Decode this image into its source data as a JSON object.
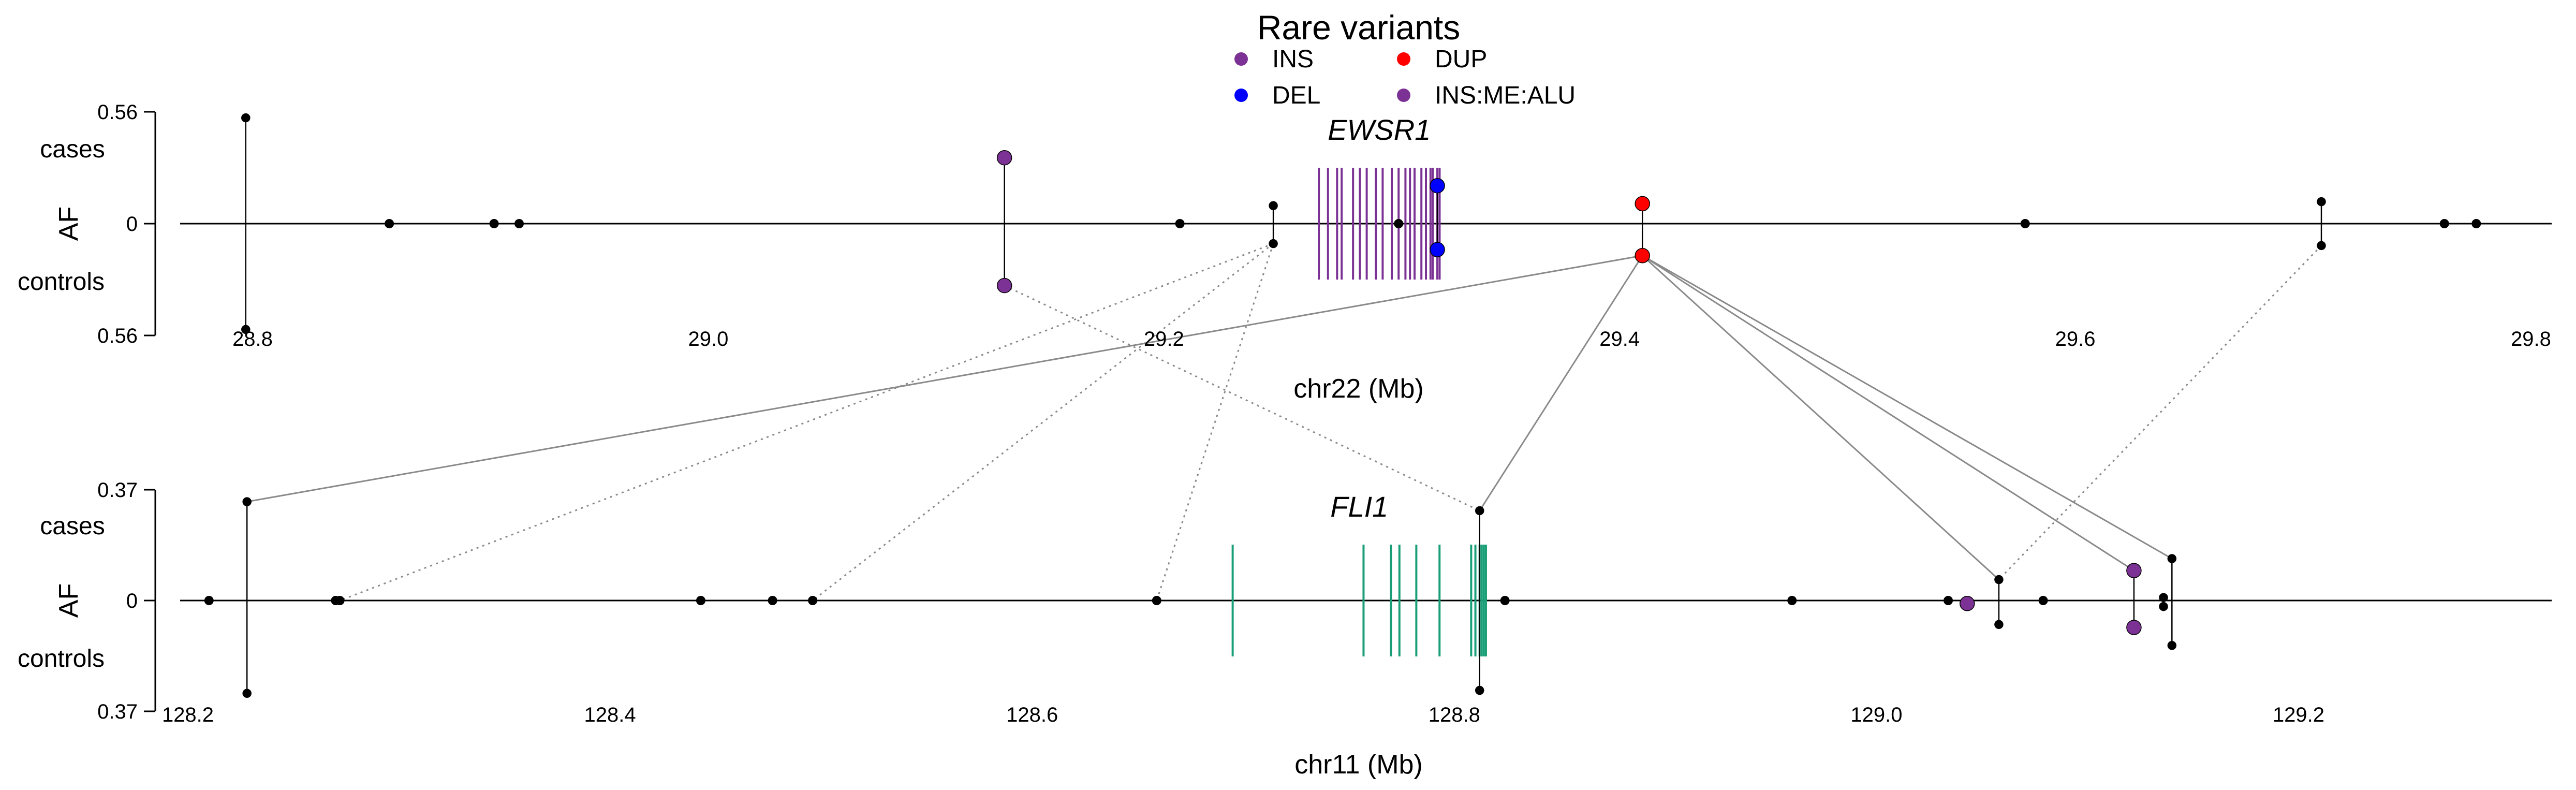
{
  "legend": {
    "title": "Rare variants",
    "items": [
      {
        "label": "INS",
        "color": "#7b3294"
      },
      {
        "label": "DUP",
        "color": "#ff0000"
      },
      {
        "label": "DEL",
        "color": "#0000ff"
      },
      {
        "label": "INS:ME:ALU",
        "color": "#7b3294"
      }
    ]
  },
  "chart_data": [
    {
      "type": "scatter",
      "panel": "top",
      "chromosome_label": "chr22 (Mb)",
      "xlabel": "chr22 (Mb)",
      "ylabel": "AF",
      "upper_label": "cases",
      "lower_label": "controls",
      "ylim_cases": 0.56,
      "ylim_controls": 0.56,
      "ytick_labels": [
        "0.56",
        "0",
        "0.56"
      ],
      "xlim": [
        28.78,
        29.84
      ],
      "xticks": [
        28.8,
        29.0,
        29.2,
        29.4,
        29.6,
        29.8
      ],
      "xtick_labels": [
        "28.8",
        "29.0",
        "29.2",
        "29.4",
        "29.6",
        "29.8"
      ],
      "gene": {
        "name": "EWSR1",
        "color": "#7b3294",
        "exons": [
          29.268,
          29.272,
          29.276,
          29.278,
          29.283,
          29.286,
          29.289,
          29.293,
          29.296,
          29.3,
          29.303,
          29.306,
          29.308,
          29.31,
          29.313,
          29.315,
          29.317,
          29.318,
          29.32,
          29.321
        ]
      },
      "variants": [
        {
          "x": 28.797,
          "case_af": 0.53,
          "control_af": 0.53,
          "color": "#000000"
        },
        {
          "x": 28.86,
          "case_af": 0.0,
          "control_af": 0.0,
          "color": "#000000"
        },
        {
          "x": 28.906,
          "case_af": 0.0,
          "control_af": 0.0,
          "color": "#000000"
        },
        {
          "x": 28.917,
          "case_af": 0.0,
          "control_af": 0.0,
          "color": "#000000"
        },
        {
          "x": 29.13,
          "case_af": 0.33,
          "control_af": 0.31,
          "color": "#7b3294"
        },
        {
          "x": 29.207,
          "case_af": 0.0,
          "control_af": 0.0,
          "color": "#000000"
        },
        {
          "x": 29.248,
          "case_af": 0.09,
          "control_af": 0.1,
          "color": "#000000"
        },
        {
          "x": 29.303,
          "case_af": 0.0,
          "control_af": 0.0,
          "color": "#000000"
        },
        {
          "x": 29.32,
          "case_af": 0.19,
          "control_af": 0.13,
          "color": "#0000ff"
        },
        {
          "x": 29.41,
          "case_af": 0.1,
          "control_af": 0.16,
          "color": "#ff0000"
        },
        {
          "x": 29.578,
          "case_af": 0.0,
          "control_af": 0.0,
          "color": "#000000"
        },
        {
          "x": 29.708,
          "case_af": 0.11,
          "control_af": 0.11,
          "color": "#000000"
        },
        {
          "x": 29.762,
          "case_af": 0.0,
          "control_af": 0.0,
          "color": "#000000"
        },
        {
          "x": 29.776,
          "case_af": 0.0,
          "control_af": 0.0,
          "color": "#000000"
        }
      ]
    },
    {
      "type": "scatter",
      "panel": "bottom",
      "chromosome_label": "chr11 (Mb)",
      "xlabel": "chr11 (Mb)",
      "ylabel": "AF",
      "upper_label": "cases",
      "lower_label": "controls",
      "ylim_cases": 0.37,
      "ylim_controls": 0.37,
      "ytick_labels": [
        "0.37",
        "0",
        "0.37"
      ],
      "xlim": [
        128.2,
        129.32
      ],
      "xticks": [
        128.2,
        128.4,
        128.6,
        128.8,
        129.0,
        129.2
      ],
      "xtick_labels": [
        "128.2",
        "128.4",
        "128.6",
        "128.8",
        "129.0",
        "129.2"
      ],
      "gene": {
        "name": "FLI1",
        "color": "#1a9e77",
        "exons": [
          128.695,
          128.757,
          128.77,
          128.774,
          128.782,
          128.793,
          128.808,
          128.81,
          128.812,
          128.813,
          128.814,
          128.815
        ]
      },
      "variants": [
        {
          "x": 128.228,
          "case_af": 0.33,
          "control_af": 0.31,
          "color": "#000000"
        },
        {
          "x": 128.21,
          "case_af": 0.0,
          "control_af": 0.0,
          "color": "#000000"
        },
        {
          "x": 128.27,
          "case_af": 0.0,
          "control_af": 0.0,
          "color": "#000000"
        },
        {
          "x": 128.272,
          "case_af": 0.0,
          "control_af": 0.0,
          "color": "#000000"
        },
        {
          "x": 128.443,
          "case_af": 0.0,
          "control_af": 0.0,
          "color": "#000000"
        },
        {
          "x": 128.477,
          "case_af": 0.0,
          "control_af": 0.0,
          "color": "#000000"
        },
        {
          "x": 128.496,
          "case_af": 0.0,
          "control_af": 0.0,
          "color": "#000000"
        },
        {
          "x": 128.659,
          "case_af": 0.0,
          "control_af": 0.0,
          "color": "#000000"
        },
        {
          "x": 128.812,
          "case_af": 0.3,
          "control_af": 0.3,
          "color": "#000000"
        },
        {
          "x": 128.824,
          "case_af": 0.0,
          "control_af": 0.0,
          "color": "#000000"
        },
        {
          "x": 128.96,
          "case_af": 0.0,
          "control_af": 0.0,
          "color": "#000000"
        },
        {
          "x": 129.034,
          "case_af": 0.0,
          "control_af": 0.0,
          "color": "#000000"
        },
        {
          "x": 129.043,
          "case_af": 0.0,
          "control_af": 0.01,
          "color": "#7b3294"
        },
        {
          "x": 129.058,
          "case_af": 0.07,
          "control_af": 0.08,
          "color": "#000000"
        },
        {
          "x": 129.079,
          "case_af": 0.0,
          "control_af": 0.0,
          "color": "#000000"
        },
        {
          "x": 129.122,
          "case_af": 0.1,
          "control_af": 0.09,
          "color": "#7b3294"
        },
        {
          "x": 129.136,
          "case_af": 0.01,
          "control_af": 0.02,
          "color": "#000000"
        },
        {
          "x": 129.14,
          "case_af": 0.14,
          "control_af": 0.15,
          "color": "#000000"
        }
      ]
    }
  ],
  "links": [
    {
      "style": "dotted",
      "from": {
        "panel": "top",
        "x": 29.13,
        "side": "controls"
      },
      "to": {
        "panel": "bottom",
        "x": 128.812,
        "side": "cases"
      }
    },
    {
      "style": "dotted",
      "from": {
        "panel": "top",
        "x": 29.248,
        "side": "controls"
      },
      "to": {
        "panel": "bottom",
        "x": 128.272,
        "side": "zero"
      }
    },
    {
      "style": "dotted",
      "from": {
        "panel": "top",
        "x": 29.248,
        "side": "controls"
      },
      "to": {
        "panel": "bottom",
        "x": 128.496,
        "side": "zero"
      }
    },
    {
      "style": "dotted",
      "from": {
        "panel": "top",
        "x": 29.248,
        "side": "controls"
      },
      "to": {
        "panel": "bottom",
        "x": 128.659,
        "side": "zero"
      }
    },
    {
      "style": "dotted",
      "from": {
        "panel": "top",
        "x": 29.708,
        "side": "controls"
      },
      "to": {
        "panel": "bottom",
        "x": 129.058,
        "side": "cases"
      }
    },
    {
      "style": "solid",
      "from": {
        "panel": "top",
        "x": 29.41,
        "side": "controls"
      },
      "to": {
        "panel": "bottom",
        "x": 128.228,
        "side": "cases"
      }
    },
    {
      "style": "solid",
      "from": {
        "panel": "top",
        "x": 29.41,
        "side": "controls"
      },
      "to": {
        "panel": "bottom",
        "x": 128.812,
        "side": "cases"
      }
    },
    {
      "style": "solid",
      "from": {
        "panel": "top",
        "x": 29.41,
        "side": "controls"
      },
      "to": {
        "panel": "bottom",
        "x": 129.058,
        "side": "cases"
      }
    },
    {
      "style": "solid",
      "from": {
        "panel": "top",
        "x": 29.41,
        "side": "controls"
      },
      "to": {
        "panel": "bottom",
        "x": 129.122,
        "side": "cases"
      }
    },
    {
      "style": "solid",
      "from": {
        "panel": "top",
        "x": 29.41,
        "side": "controls"
      },
      "to": {
        "panel": "bottom",
        "x": 129.14,
        "side": "cases"
      }
    }
  ]
}
